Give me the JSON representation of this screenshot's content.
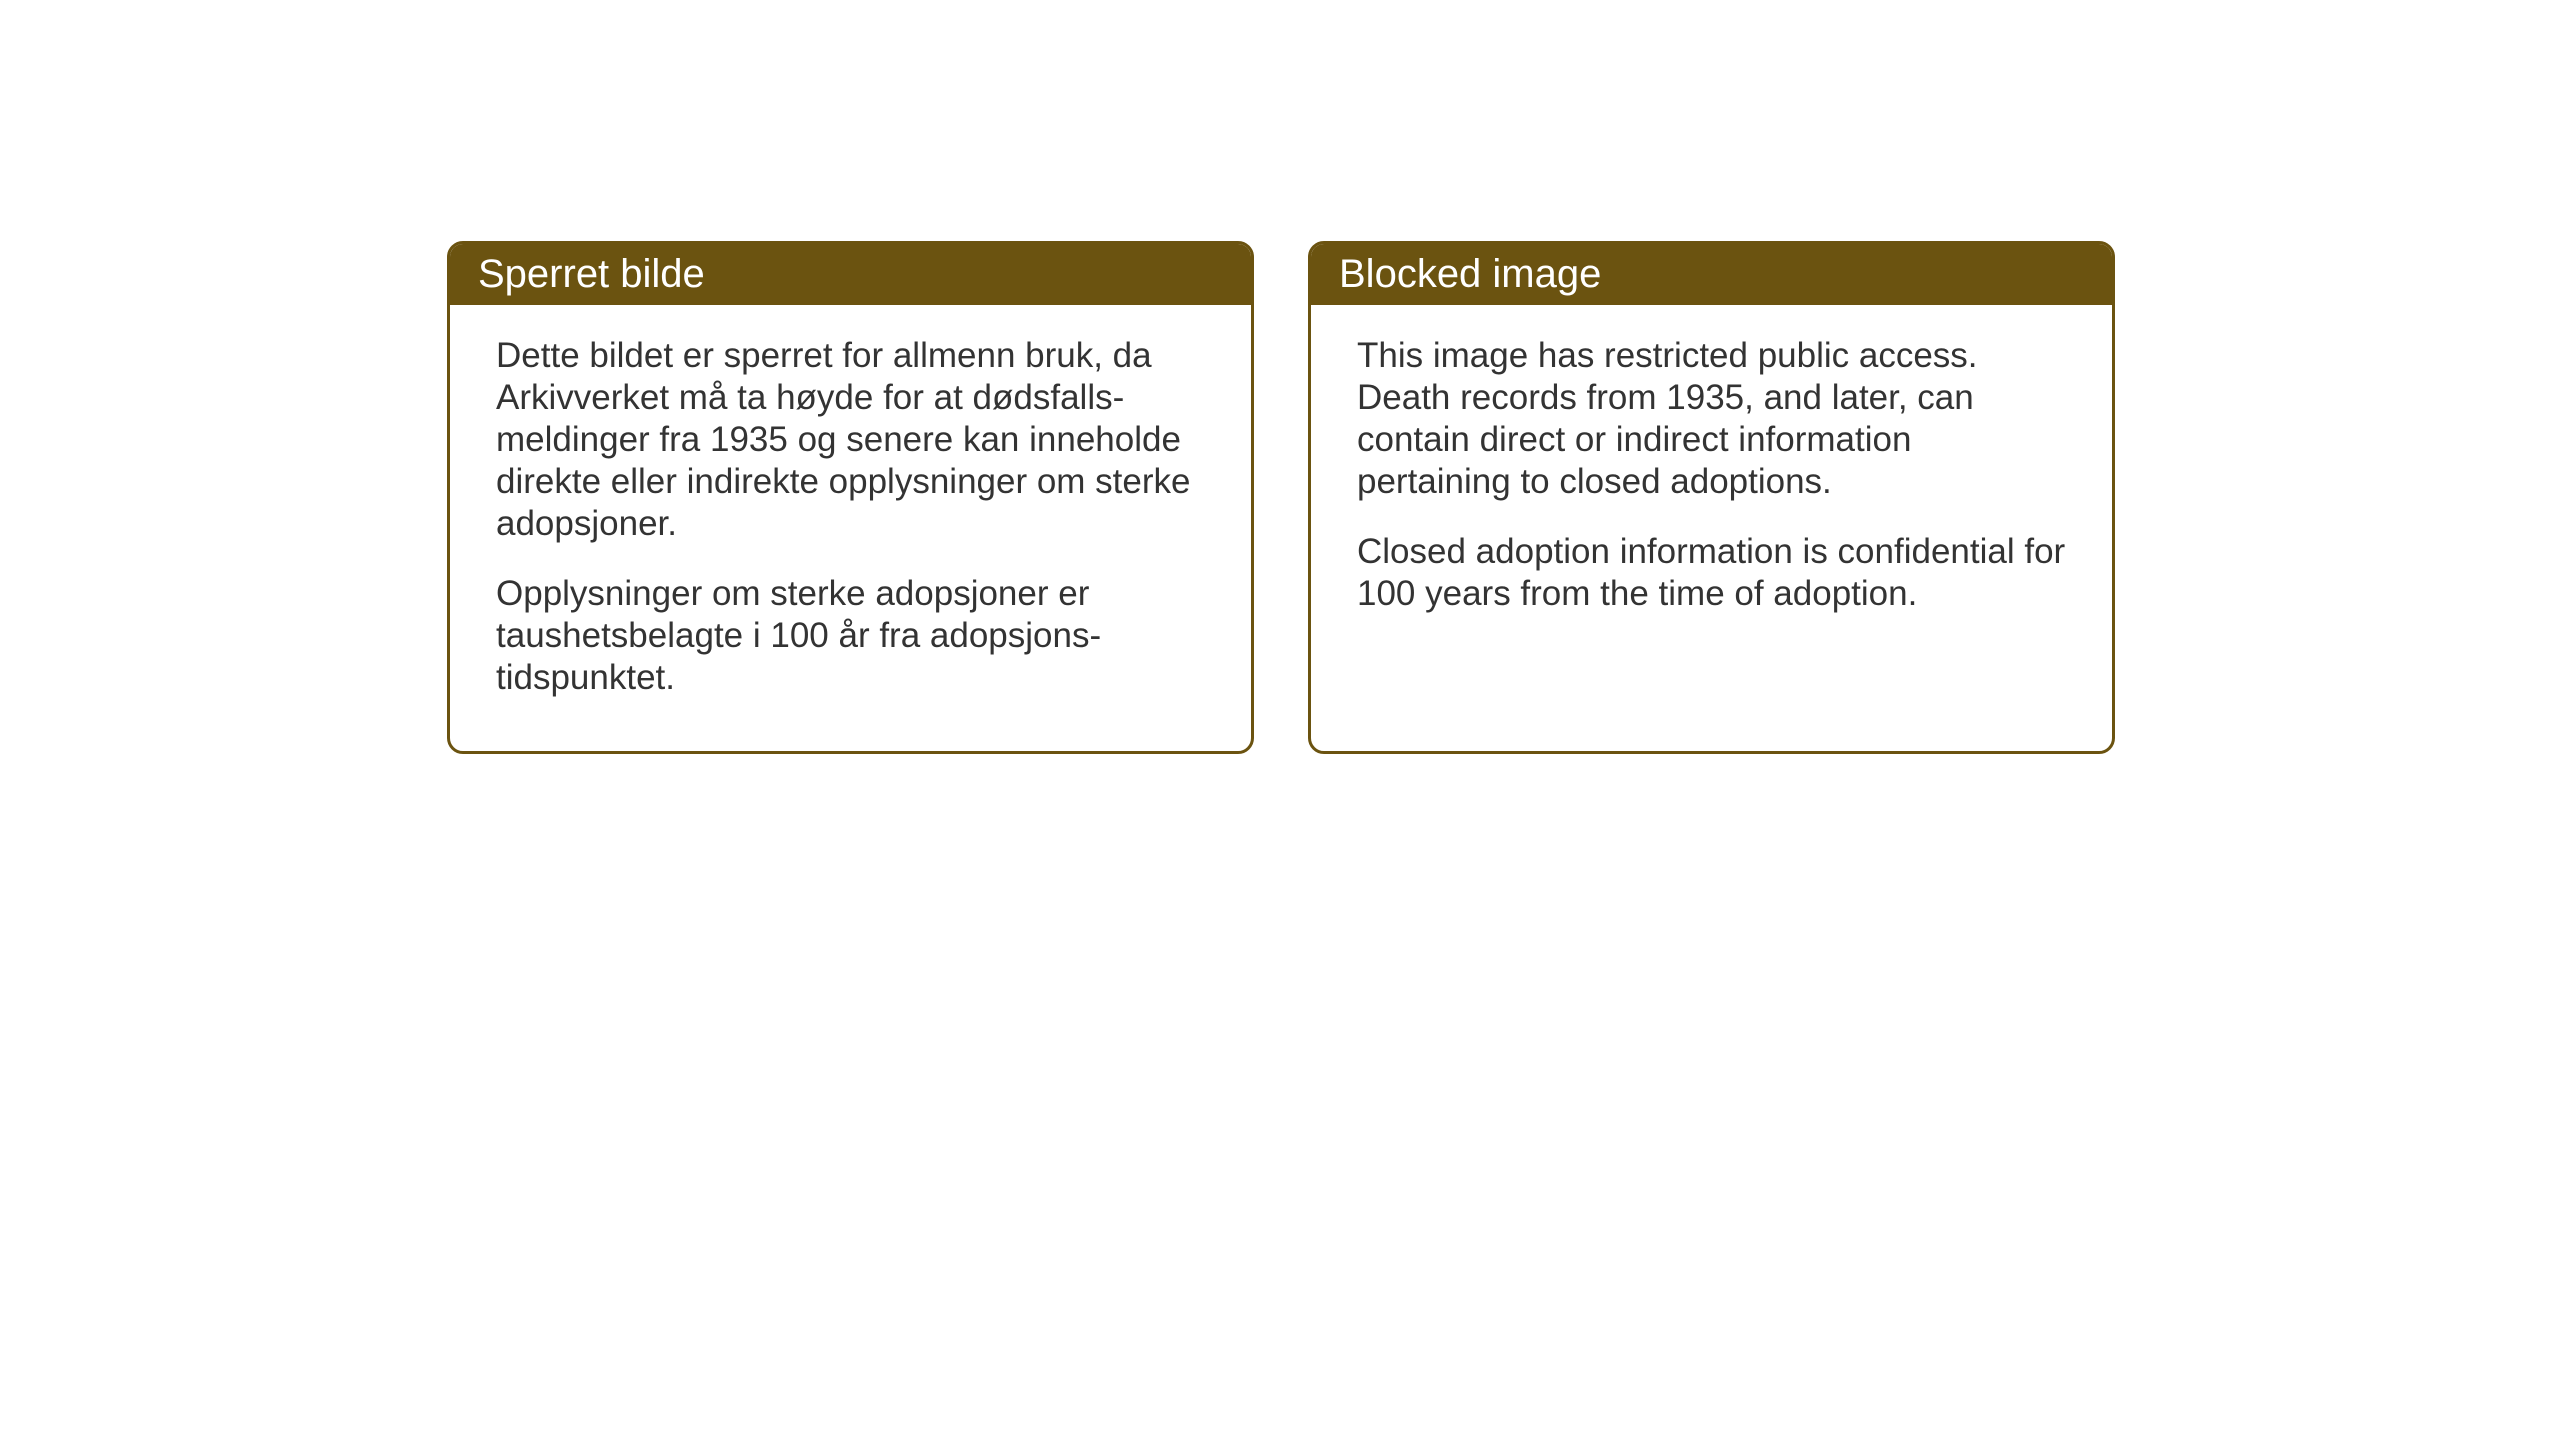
{
  "cards": {
    "norwegian": {
      "title": "Sperret bilde",
      "paragraph1": "Dette bildet er sperret for allmenn bruk, da Arkivverket må ta høyde for at dødsfalls-meldinger fra 1935 og senere kan inneholde direkte eller indirekte opplysninger om sterke adopsjoner.",
      "paragraph2": "Opplysninger om sterke adopsjoner er taushetsbelagte i 100 år fra adopsjons-tidspunktet."
    },
    "english": {
      "title": "Blocked image",
      "paragraph1": "This image has restricted public access. Death records from 1935, and later, can contain direct or indirect information pertaining to closed adoptions.",
      "paragraph2": "Closed adoption information is confidential for 100 years from the time of adoption."
    }
  },
  "styling": {
    "header_background_color": "#6b5310",
    "header_text_color": "#ffffff",
    "border_color": "#6b5310",
    "body_text_color": "#333333",
    "background_color": "#ffffff",
    "header_fontsize": 40,
    "body_fontsize": 35,
    "border_radius": 16,
    "border_width": 3
  }
}
